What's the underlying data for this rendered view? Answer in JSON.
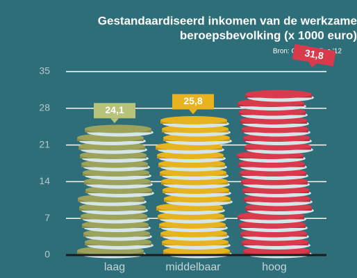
{
  "chart_data": {
    "type": "bar",
    "title": [
      "Gestandaardiseerd inkomen van de werkzame",
      "beroepsbevolking (x 1000 euro)"
    ],
    "subtitle": "Bron: CBS Statline '12",
    "categories": [
      "laag",
      "middelbaar",
      "hoog"
    ],
    "values": [
      24.1,
      25.8,
      31.8
    ],
    "value_labels": [
      "24,1",
      "25,8",
      "31,8"
    ],
    "colors": [
      "#9ea35c",
      "#e7b41f",
      "#d93a4c"
    ],
    "ylim": [
      0,
      35
    ],
    "yticks": [
      0,
      7,
      14,
      21,
      28,
      35
    ],
    "grid": true
  }
}
